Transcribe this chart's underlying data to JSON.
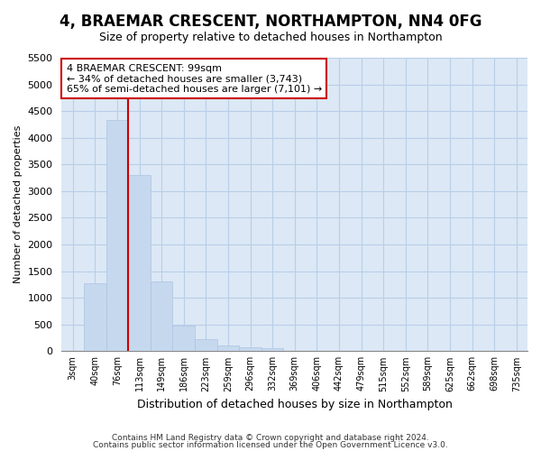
{
  "title": "4, BRAEMAR CRESCENT, NORTHAMPTON, NN4 0FG",
  "subtitle": "Size of property relative to detached houses in Northampton",
  "xlabel": "Distribution of detached houses by size in Northampton",
  "ylabel": "Number of detached properties",
  "footnote1": "Contains HM Land Registry data © Crown copyright and database right 2024.",
  "footnote2": "Contains public sector information licensed under the Open Government Licence v3.0.",
  "bar_labels": [
    "3sqm",
    "40sqm",
    "76sqm",
    "113sqm",
    "149sqm",
    "186sqm",
    "223sqm",
    "259sqm",
    "296sqm",
    "332sqm",
    "369sqm",
    "406sqm",
    "442sqm",
    "479sqm",
    "515sqm",
    "552sqm",
    "589sqm",
    "625sqm",
    "662sqm",
    "698sqm",
    "735sqm"
  ],
  "bar_values": [
    0,
    1270,
    4340,
    3300,
    1300,
    480,
    230,
    100,
    75,
    60,
    0,
    0,
    0,
    0,
    0,
    0,
    0,
    0,
    0,
    0,
    0
  ],
  "bar_color": "#c5d8ee",
  "bar_edge_color": "#adc4e0",
  "vline_x": 2.5,
  "vline_color": "#cc0000",
  "ylim": [
    0,
    5500
  ],
  "yticks": [
    0,
    500,
    1000,
    1500,
    2000,
    2500,
    3000,
    3500,
    4000,
    4500,
    5000,
    5500
  ],
  "annotation_line1": "4 BRAEMAR CRESCENT: 99sqm",
  "annotation_line2": "← 34% of detached houses are smaller (3,743)",
  "annotation_line3": "65% of semi-detached houses are larger (7,101) →",
  "annotation_box_color": "#ffffff",
  "annotation_box_edge": "#cc0000",
  "bg_color": "#ffffff",
  "plot_bg_color": "#dce8f5",
  "grid_color": "#b8cfe8",
  "title_fontsize": 12,
  "subtitle_fontsize": 9,
  "ylabel_fontsize": 8,
  "xlabel_fontsize": 9
}
